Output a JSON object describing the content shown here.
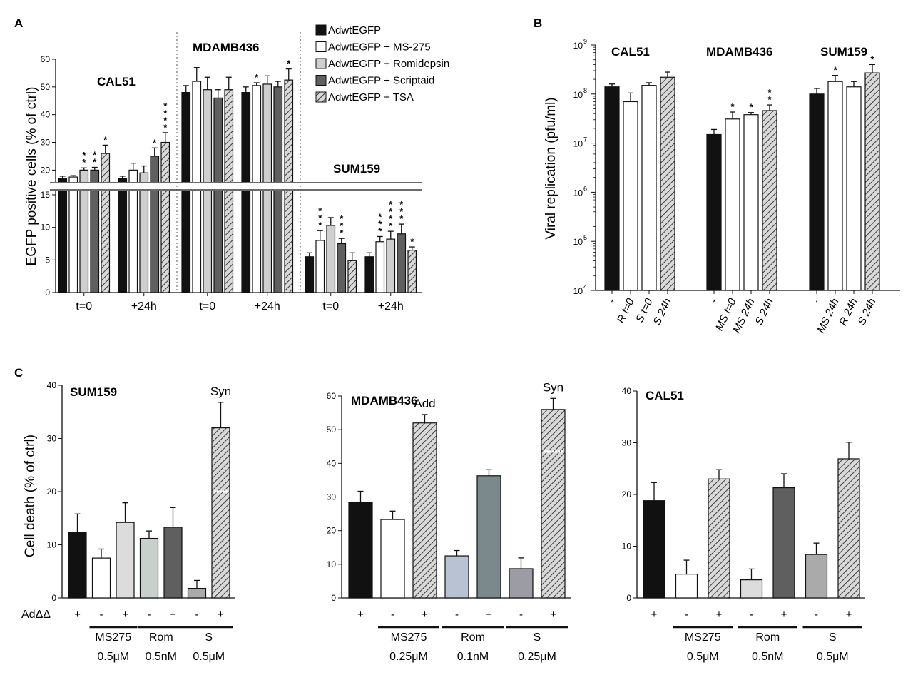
{
  "colors": {
    "black": "#111111",
    "white": "#ffffff",
    "light_gray": "#cfcfcf",
    "dark_gray": "#5f5f5f",
    "hatch": "#9a9a9a",
    "blue_gray": "#b9c2d2",
    "slate": "#7b888c",
    "mid_gray": "#9c9ca4",
    "pale_gray": "#dcdcdc",
    "sage": "#c8d0cc",
    "silver": "#aaaaaa"
  },
  "chart_data": [
    {
      "id": "A",
      "panel_label": "A",
      "type": "bar",
      "ylabel": "EGFP positive cells (% of ctrl)",
      "y_lower_ticks": [
        "0",
        "5",
        "10",
        "15"
      ],
      "y_upper_ticks": [
        "20",
        "30",
        "40",
        "50",
        "60"
      ],
      "ylim_lower": [
        0,
        15
      ],
      "ylim_upper": [
        17,
        60
      ],
      "legend": [
        {
          "name": "AdwtEGFP",
          "pattern": "black"
        },
        {
          "name": "AdwtEGFP + MS-275",
          "pattern": "white"
        },
        {
          "name": "AdwtEGFP + Romidepsin",
          "pattern": "light_gray"
        },
        {
          "name": "AdwtEGFP + Scriptaid",
          "pattern": "dark_gray"
        },
        {
          "name": "AdwtEGFP + TSA",
          "pattern": "hatch"
        }
      ],
      "cell_lines": [
        {
          "name": "CAL51",
          "groups": [
            {
              "label": "t=0",
              "values": [
                17,
                17.5,
                20,
                20,
                26
              ],
              "errors": [
                0.8,
                0.5,
                0.8,
                1,
                3
              ],
              "stars": [
                "",
                "",
                "**",
                "**",
                "*"
              ]
            },
            {
              "label": "+24h",
              "values": [
                17,
                20,
                19,
                25,
                30
              ],
              "errors": [
                0.8,
                2.5,
                2.5,
                3,
                3.5
              ],
              "stars": [
                "",
                "",
                "",
                "*",
                "****"
              ]
            }
          ]
        },
        {
          "name": "MDAMB436",
          "groups": [
            {
              "label": "t=0",
              "values": [
                48,
                52,
                49,
                46,
                49
              ],
              "errors": [
                2.5,
                5,
                4.5,
                3,
                4.5
              ],
              "stars": [
                "",
                "",
                "",
                "",
                ""
              ]
            },
            {
              "label": "+24h",
              "values": [
                48,
                50.5,
                51,
                50,
                52.5
              ],
              "errors": [
                2,
                1,
                3,
                2,
                4
              ],
              "stars": [
                "",
                "*",
                "",
                "",
                "*"
              ]
            }
          ]
        },
        {
          "name": "SUM159",
          "groups": [
            {
              "label": "t=0",
              "values": [
                5.5,
                8,
                10.3,
                7.5,
                4.9
              ],
              "errors": [
                0.6,
                1.5,
                1.2,
                0.8,
                1.2
              ],
              "stars": [
                "",
                "***",
                "",
                "***",
                ""
              ]
            },
            {
              "label": "+24h",
              "values": [
                5.5,
                7.8,
                8.2,
                9,
                6.5
              ],
              "errors": [
                0.6,
                0.8,
                1.2,
                1.5,
                0.5
              ],
              "stars": [
                "",
                "***",
                "****",
                "***",
                "*"
              ]
            }
          ]
        }
      ]
    },
    {
      "id": "B",
      "panel_label": "B",
      "type": "bar",
      "yscale": "log",
      "ylabel": "Viral replication (pfu/ml)",
      "ylim": [
        10000,
        1000000000
      ],
      "y_ticks": [
        {
          "base": "10",
          "exp": "4",
          "value": 10000
        },
        {
          "base": "10",
          "exp": "5",
          "value": 100000
        },
        {
          "base": "10",
          "exp": "6",
          "value": 1000000
        },
        {
          "base": "10",
          "exp": "7",
          "value": 10000000
        },
        {
          "base": "10",
          "exp": "8",
          "value": 100000000
        },
        {
          "base": "10",
          "exp": "9",
          "value": 1000000000
        }
      ],
      "groups": [
        {
          "name": "CAL51",
          "bars": [
            {
              "label": "-",
              "value": 140000000,
              "err_high": 160000000,
              "pattern": "black",
              "star": ""
            },
            {
              "label": "R t=0",
              "value": 70000000,
              "err_high": 105000000,
              "pattern": "white",
              "star": ""
            },
            {
              "label": "S t=0",
              "value": 150000000,
              "err_high": 170000000,
              "pattern": "white",
              "star": ""
            },
            {
              "label": "S 24h",
              "value": 220000000,
              "err_high": 280000000,
              "pattern": "hatch",
              "star": ""
            }
          ]
        },
        {
          "name": "MDAMB436",
          "bars": [
            {
              "label": "-",
              "value": 15000000,
              "err_high": 19000000,
              "pattern": "black",
              "star": ""
            },
            {
              "label": "MS t=0",
              "value": 31000000,
              "err_high": 43000000,
              "pattern": "white",
              "star": "*"
            },
            {
              "label": "MS 24h",
              "value": 38000000,
              "err_high": 42000000,
              "pattern": "white",
              "star": "*"
            },
            {
              "label": "S 24h",
              "value": 46000000,
              "err_high": 60000000,
              "pattern": "hatch",
              "star": "**"
            }
          ]
        },
        {
          "name": "SUM159",
          "bars": [
            {
              "label": "-",
              "value": 100000000,
              "err_high": 130000000,
              "pattern": "black",
              "star": ""
            },
            {
              "label": "MS 24h",
              "value": 180000000,
              "err_high": 240000000,
              "pattern": "white",
              "star": "*"
            },
            {
              "label": "R 24h",
              "value": 140000000,
              "err_high": 180000000,
              "pattern": "white",
              "star": ""
            },
            {
              "label": "S 24h",
              "value": 270000000,
              "err_high": 400000000,
              "pattern": "hatch",
              "star": "*"
            }
          ]
        }
      ]
    },
    {
      "id": "C",
      "panel_label": "C",
      "type": "bar",
      "ylabel": "Cell death (% of ctrl)",
      "row_label": "AdΔΔ",
      "subplots": [
        {
          "title": "SUM159",
          "ylim": [
            0,
            40
          ],
          "y_ticks": [
            0,
            10,
            20,
            30,
            40
          ],
          "bars": [
            {
              "value": 12.3,
              "error": 3.5,
              "sign": "+",
              "pattern": "black"
            },
            {
              "value": 7.5,
              "error": 1.7,
              "sign": "-",
              "pattern": "white"
            },
            {
              "value": 14.2,
              "error": 3.7,
              "sign": "+",
              "pattern": "pale_gray"
            },
            {
              "value": 11.2,
              "error": 1.4,
              "sign": "-",
              "pattern": "sage"
            },
            {
              "value": 13.3,
              "error": 3.7,
              "sign": "+",
              "pattern": "dark_gray"
            },
            {
              "value": 1.8,
              "error": 1.5,
              "sign": "-",
              "pattern": "silver"
            },
            {
              "value": 32,
              "error": 4.8,
              "sign": "+",
              "pattern": "hatch"
            }
          ],
          "treatments": [
            {
              "name": "MS275",
              "dose": "0.5μM"
            },
            {
              "name": "Rom",
              "dose": "0.5nM"
            },
            {
              "name": "S",
              "dose": "0.5μM"
            }
          ],
          "annotations": [
            {
              "bar": 6,
              "text": "Syn"
            }
          ],
          "additivity_marks": [
            {
              "bar": 6,
              "value": 20
            }
          ]
        },
        {
          "title": "MDAMB436",
          "ylim": [
            0,
            60
          ],
          "y_ticks": [
            0,
            10,
            20,
            30,
            40,
            50,
            60
          ],
          "bars": [
            {
              "value": 28.5,
              "error": 3.2,
              "sign": "+",
              "pattern": "black"
            },
            {
              "value": 23.3,
              "error": 2.5,
              "sign": "-",
              "pattern": "white"
            },
            {
              "value": 52,
              "error": 2.5,
              "sign": "+",
              "pattern": "hatch"
            },
            {
              "value": 12.5,
              "error": 1.6,
              "sign": "-",
              "pattern": "blue_gray"
            },
            {
              "value": 36.3,
              "error": 1.8,
              "sign": "+",
              "pattern": "slate"
            },
            {
              "value": 8.7,
              "error": 3.2,
              "sign": "-",
              "pattern": "mid_gray"
            },
            {
              "value": 56,
              "error": 3.3,
              "sign": "+",
              "pattern": "hatch"
            }
          ],
          "treatments": [
            {
              "name": "MS275",
              "dose": "0.25μM"
            },
            {
              "name": "Rom",
              "dose": "0.1nM"
            },
            {
              "name": "S",
              "dose": "0.25μM"
            }
          ],
          "annotations": [
            {
              "bar": 2,
              "text": "Add"
            },
            {
              "bar": 6,
              "text": "Syn"
            }
          ],
          "additivity_marks": [
            {
              "bar": 6,
              "value": 43.5
            }
          ]
        },
        {
          "title": "CAL51",
          "ylim": [
            0,
            40
          ],
          "y_ticks": [
            0,
            10,
            20,
            30,
            40
          ],
          "bars": [
            {
              "value": 18.8,
              "error": 3.5,
              "sign": "+",
              "pattern": "black"
            },
            {
              "value": 4.6,
              "error": 2.7,
              "sign": "-",
              "pattern": "white"
            },
            {
              "value": 23,
              "error": 1.8,
              "sign": "+",
              "pattern": "hatch"
            },
            {
              "value": 3.5,
              "error": 2.1,
              "sign": "-",
              "pattern": "pale_gray"
            },
            {
              "value": 21.3,
              "error": 2.7,
              "sign": "+",
              "pattern": "dark_gray"
            },
            {
              "value": 8.4,
              "error": 2.2,
              "sign": "-",
              "pattern": "silver"
            },
            {
              "value": 26.9,
              "error": 3.2,
              "sign": "+",
              "pattern": "hatch"
            }
          ],
          "treatments": [
            {
              "name": "MS275",
              "dose": "0.5μM"
            },
            {
              "name": "Rom",
              "dose": "0.5nM"
            },
            {
              "name": "S",
              "dose": "0.5μM"
            }
          ],
          "annotations": [],
          "additivity_marks": []
        }
      ]
    }
  ]
}
